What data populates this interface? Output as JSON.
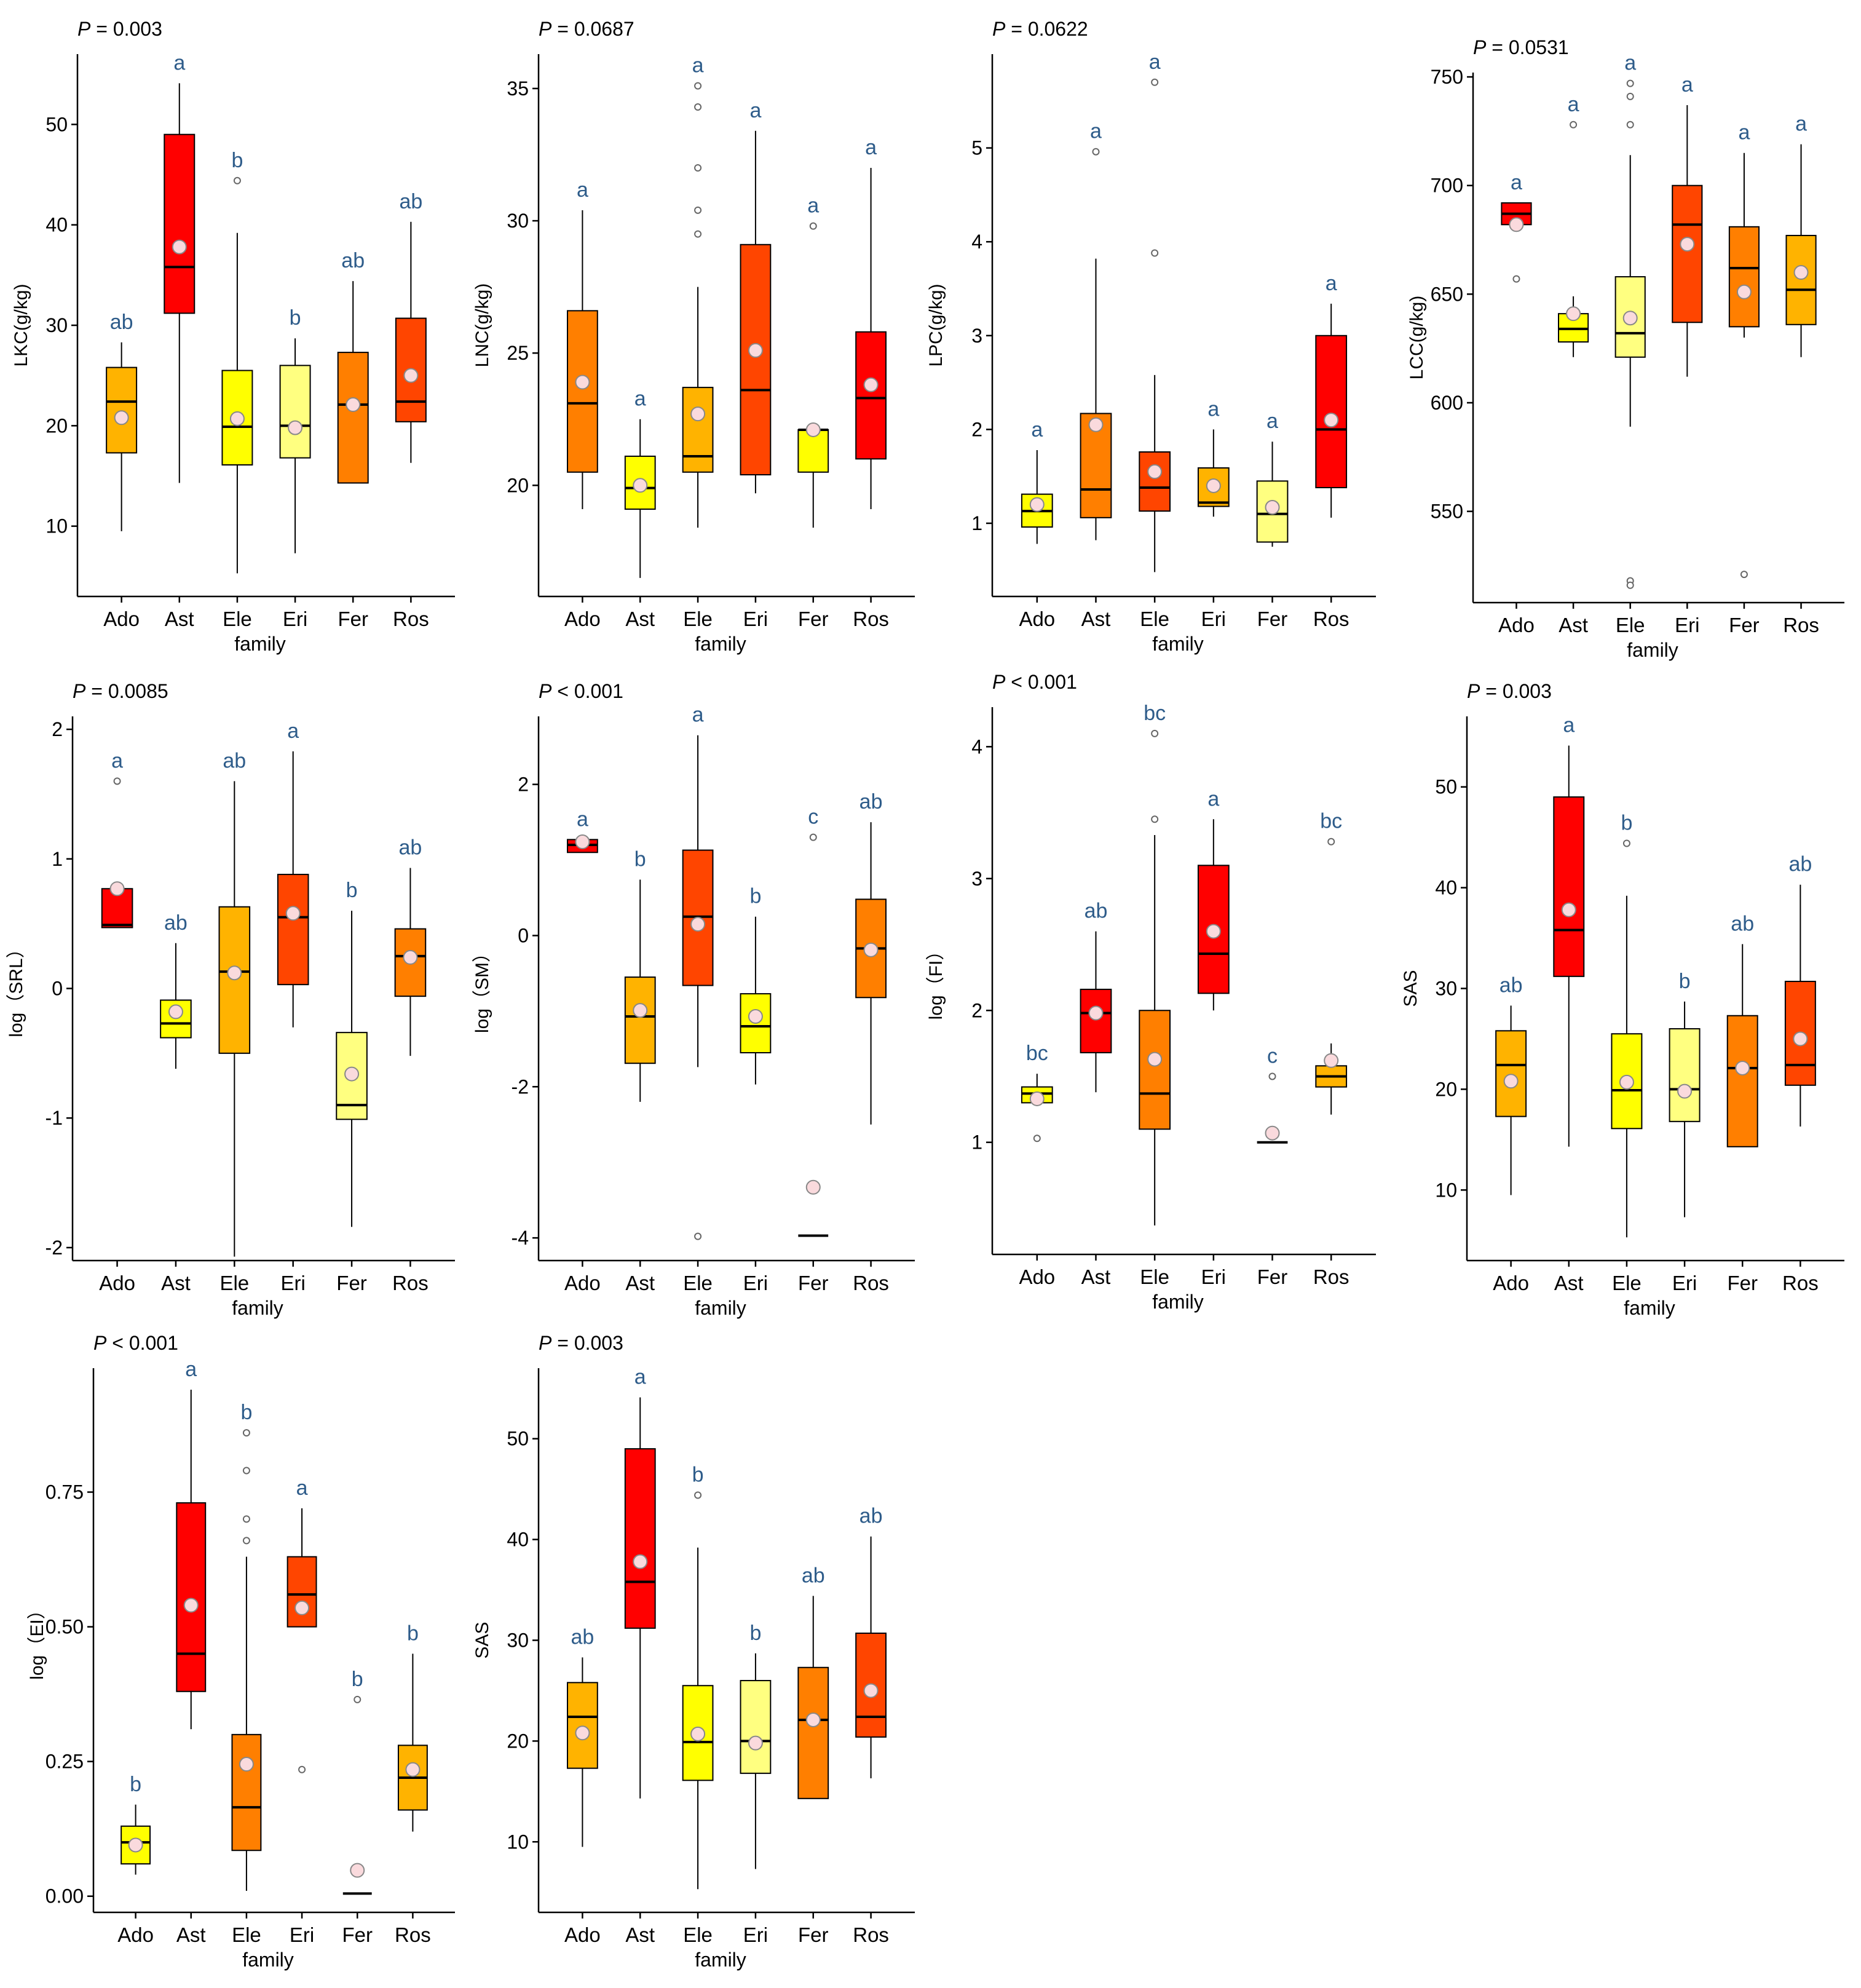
{
  "colors": {
    "red": "#FF0000",
    "redorange": "#FF4500",
    "orange": "#FF7F00",
    "amber": "#FFB300",
    "yellow": "#FFFF00",
    "paleyellow": "#FFFF80",
    "letter": "#2E5C8A",
    "mean_fill": "#FADADD"
  },
  "chart_data": [
    {
      "type": "box",
      "pvalue": "P = 0.003",
      "ylabel": "LKC(g/kg)",
      "xlabel": "family",
      "ylim": [
        3,
        57
      ],
      "yticks": [
        10,
        20,
        30,
        40,
        50
      ],
      "categories": [
        "Ado",
        "Ast",
        "Ele",
        "Eri",
        "Fer",
        "Ros"
      ],
      "boxes": [
        {
          "q1": 17.3,
          "median": 22.4,
          "q3": 25.8,
          "lo": 9.5,
          "hi": 28.3,
          "mean": 20.8,
          "outliers": [],
          "letter": "ab",
          "color": "amber"
        },
        {
          "q1": 31.2,
          "median": 35.8,
          "q3": 49.0,
          "lo": 14.3,
          "hi": 54.1,
          "mean": 37.8,
          "outliers": [],
          "letter": "a",
          "color": "red"
        },
        {
          "q1": 16.1,
          "median": 19.9,
          "q3": 25.5,
          "lo": 5.3,
          "hi": 39.2,
          "mean": 20.7,
          "outliers": [
            44.4
          ],
          "letter": "b",
          "color": "yellow"
        },
        {
          "q1": 16.8,
          "median": 20.0,
          "q3": 26.0,
          "lo": 7.3,
          "hi": 28.7,
          "mean": 19.8,
          "outliers": [],
          "letter": "b",
          "color": "paleyellow"
        },
        {
          "q1": 14.3,
          "median": 22.1,
          "q3": 27.3,
          "lo": 14.3,
          "hi": 34.4,
          "mean": 22.1,
          "outliers": [],
          "letter": "ab",
          "color": "orange"
        },
        {
          "q1": 20.4,
          "median": 22.4,
          "q3": 30.7,
          "lo": 16.3,
          "hi": 40.3,
          "mean": 25.0,
          "outliers": [],
          "letter": "ab",
          "color": "redorange"
        }
      ]
    },
    {
      "type": "box",
      "pvalue": "P = 0.0687",
      "ylabel": "LNC(g/kg)",
      "xlabel": "family",
      "ylim": [
        15.8,
        36.3
      ],
      "yticks": [
        20,
        25,
        30,
        35
      ],
      "categories": [
        "Ado",
        "Ast",
        "Ele",
        "Eri",
        "Fer",
        "Ros"
      ],
      "boxes": [
        {
          "q1": 20.5,
          "median": 23.1,
          "q3": 26.6,
          "lo": 19.1,
          "hi": 30.4,
          "mean": 23.9,
          "outliers": [],
          "letter": "a",
          "color": "orange"
        },
        {
          "q1": 19.1,
          "median": 19.9,
          "q3": 21.1,
          "lo": 16.5,
          "hi": 22.5,
          "mean": 20.0,
          "outliers": [],
          "letter": "a",
          "color": "yellow"
        },
        {
          "q1": 20.5,
          "median": 21.1,
          "q3": 23.7,
          "lo": 18.4,
          "hi": 27.5,
          "mean": 22.7,
          "outliers": [
            29.5,
            30.4,
            32.0,
            34.3,
            35.1
          ],
          "letter": "a",
          "color": "amber"
        },
        {
          "q1": 20.4,
          "median": 23.6,
          "q3": 29.1,
          "lo": 19.7,
          "hi": 33.4,
          "mean": 25.1,
          "outliers": [],
          "letter": "a",
          "color": "redorange"
        },
        {
          "q1": 20.5,
          "median": 22.1,
          "q3": 22.1,
          "lo": 18.4,
          "hi": 22.1,
          "mean": 22.1,
          "outliers": [
            29.8
          ],
          "letter": "a",
          "color": "yellow"
        },
        {
          "q1": 21.0,
          "median": 23.3,
          "q3": 25.8,
          "lo": 19.1,
          "hi": 32.0,
          "mean": 23.8,
          "outliers": [],
          "letter": "a",
          "color": "red"
        }
      ]
    },
    {
      "type": "box",
      "pvalue": "P = 0.0622",
      "ylabel": "LPC(g/kg)",
      "xlabel": "family",
      "ylim": [
        0.22,
        6.0
      ],
      "yticks": [
        1,
        2,
        3,
        4,
        5
      ],
      "categories": [
        "Ado",
        "Ast",
        "Ele",
        "Eri",
        "Fer",
        "Ros"
      ],
      "boxes": [
        {
          "q1": 0.96,
          "median": 1.13,
          "q3": 1.31,
          "lo": 0.78,
          "hi": 1.78,
          "mean": 1.2,
          "outliers": [],
          "letter": "a",
          "color": "yellow"
        },
        {
          "q1": 1.06,
          "median": 1.36,
          "q3": 2.17,
          "lo": 0.82,
          "hi": 3.82,
          "mean": 2.05,
          "outliers": [
            4.96
          ],
          "letter": "a",
          "color": "orange"
        },
        {
          "q1": 1.13,
          "median": 1.38,
          "q3": 1.76,
          "lo": 0.48,
          "hi": 2.58,
          "mean": 1.55,
          "outliers": [
            3.88,
            5.7
          ],
          "letter": "a",
          "color": "redorange"
        },
        {
          "q1": 1.18,
          "median": 1.22,
          "q3": 1.59,
          "lo": 1.07,
          "hi": 2.0,
          "mean": 1.4,
          "outliers": [],
          "letter": "a",
          "color": "amber"
        },
        {
          "q1": 0.8,
          "median": 1.1,
          "q3": 1.45,
          "lo": 0.75,
          "hi": 1.87,
          "mean": 1.17,
          "outliers": [],
          "letter": "a",
          "color": "paleyellow"
        },
        {
          "q1": 1.38,
          "median": 2.0,
          "q3": 3.0,
          "lo": 1.06,
          "hi": 3.34,
          "mean": 2.1,
          "outliers": [],
          "letter": "a",
          "color": "red"
        }
      ]
    },
    {
      "type": "box",
      "pvalue": "P = 0.0531",
      "ylabel": "LCC(g/kg)",
      "xlabel": "family",
      "ylim": [
        508,
        752
      ],
      "yticks": [
        550,
        600,
        650,
        700,
        750
      ],
      "categories": [
        "Ado",
        "Ast",
        "Ele",
        "Eri",
        "Fer",
        "Ros"
      ],
      "boxes": [
        {
          "q1": 682,
          "median": 687,
          "q3": 692,
          "lo": 682,
          "hi": 692,
          "mean": 682,
          "outliers": [
            657
          ],
          "letter": "a",
          "color": "red"
        },
        {
          "q1": 628,
          "median": 634,
          "q3": 641,
          "lo": 621,
          "hi": 649,
          "mean": 641,
          "outliers": [
            728
          ],
          "letter": "a",
          "color": "yellow"
        },
        {
          "q1": 621,
          "median": 632,
          "q3": 658,
          "lo": 589,
          "hi": 714,
          "mean": 639,
          "outliers": [
            518,
            516,
            728,
            741,
            747
          ],
          "letter": "a",
          "color": "paleyellow"
        },
        {
          "q1": 637,
          "median": 682,
          "q3": 700,
          "lo": 612,
          "hi": 737,
          "mean": 673,
          "outliers": [],
          "letter": "a",
          "color": "redorange"
        },
        {
          "q1": 635,
          "median": 662,
          "q3": 681,
          "lo": 630,
          "hi": 715,
          "mean": 651,
          "outliers": [
            521
          ],
          "letter": "a",
          "color": "orange"
        },
        {
          "q1": 636,
          "median": 652,
          "q3": 677,
          "lo": 621,
          "hi": 719,
          "mean": 660,
          "outliers": [],
          "letter": "a",
          "color": "amber"
        }
      ]
    },
    {
      "type": "box",
      "pvalue": "P = 0.0085",
      "ylabel": "log（SRL）",
      "xlabel": "family",
      "ylim": [
        -2.1,
        2.1
      ],
      "yticks": [
        -2,
        -1,
        0,
        1,
        2
      ],
      "categories": [
        "Ado",
        "Ast",
        "Ele",
        "Eri",
        "Fer",
        "Ros"
      ],
      "boxes": [
        {
          "q1": 0.47,
          "median": 0.49,
          "q3": 0.77,
          "lo": 0.47,
          "hi": 0.77,
          "mean": 0.77,
          "outliers": [
            1.6
          ],
          "letter": "a",
          "color": "red"
        },
        {
          "q1": -0.38,
          "median": -0.27,
          "q3": -0.09,
          "lo": -0.62,
          "hi": 0.35,
          "mean": -0.18,
          "outliers": [],
          "letter": "ab",
          "color": "yellow"
        },
        {
          "q1": -0.5,
          "median": 0.13,
          "q3": 0.63,
          "lo": -2.07,
          "hi": 1.6,
          "mean": 0.12,
          "outliers": [],
          "letter": "ab",
          "color": "amber"
        },
        {
          "q1": 0.03,
          "median": 0.55,
          "q3": 0.88,
          "lo": -0.3,
          "hi": 1.83,
          "mean": 0.58,
          "outliers": [],
          "letter": "a",
          "color": "redorange"
        },
        {
          "q1": -1.01,
          "median": -0.9,
          "q3": -0.34,
          "lo": -1.84,
          "hi": 0.6,
          "mean": -0.66,
          "outliers": [],
          "letter": "b",
          "color": "paleyellow"
        },
        {
          "q1": -0.06,
          "median": 0.25,
          "q3": 0.46,
          "lo": -0.52,
          "hi": 0.93,
          "mean": 0.24,
          "outliers": [],
          "letter": "ab",
          "color": "orange"
        }
      ]
    },
    {
      "type": "box",
      "pvalue": "P < 0.001",
      "ylabel": "log（SM）",
      "xlabel": "family",
      "ylim": [
        -4.3,
        2.9
      ],
      "yticks": [
        -4,
        -2,
        0,
        2
      ],
      "categories": [
        "Ado",
        "Ast",
        "Ele",
        "Eri",
        "Fer",
        "Ros"
      ],
      "boxes": [
        {
          "q1": 1.1,
          "median": 1.2,
          "q3": 1.27,
          "lo": 1.1,
          "hi": 1.27,
          "mean": 1.24,
          "outliers": [],
          "letter": "a",
          "color": "red"
        },
        {
          "q1": -1.69,
          "median": -1.07,
          "q3": -0.55,
          "lo": -2.2,
          "hi": 0.74,
          "mean": -0.99,
          "outliers": [],
          "letter": "b",
          "color": "amber"
        },
        {
          "q1": -0.66,
          "median": 0.25,
          "q3": 1.13,
          "lo": -1.74,
          "hi": 2.65,
          "mean": 0.15,
          "outliers": [
            -3.98
          ],
          "letter": "a",
          "color": "redorange"
        },
        {
          "q1": -1.55,
          "median": -1.2,
          "q3": -0.77,
          "lo": -1.97,
          "hi": 0.25,
          "mean": -1.07,
          "outliers": [],
          "letter": "b",
          "color": "yellow"
        },
        {
          "q1": -3.97,
          "median": -3.97,
          "q3": -3.97,
          "lo": -3.97,
          "hi": -3.97,
          "mean": -3.33,
          "outliers": [
            1.3
          ],
          "letter": "c",
          "color": "paleyellow"
        },
        {
          "q1": -0.82,
          "median": -0.17,
          "q3": 0.48,
          "lo": -2.5,
          "hi": 1.5,
          "mean": -0.19,
          "outliers": [],
          "letter": "ab",
          "color": "orange"
        }
      ]
    },
    {
      "type": "box",
      "pvalue": "P < 0.001",
      "ylabel": "log（FI）",
      "xlabel": "family",
      "ylim": [
        0.15,
        4.3
      ],
      "yticks": [
        1,
        2,
        3,
        4
      ],
      "categories": [
        "Ado",
        "Ast",
        "Ele",
        "Eri",
        "Fer",
        "Ros"
      ],
      "boxes": [
        {
          "q1": 1.3,
          "median": 1.37,
          "q3": 1.42,
          "lo": 1.3,
          "hi": 1.52,
          "mean": 1.33,
          "outliers": [
            1.03
          ],
          "letter": "bc",
          "color": "yellow"
        },
        {
          "q1": 1.68,
          "median": 1.98,
          "q3": 2.16,
          "lo": 1.38,
          "hi": 2.6,
          "mean": 1.98,
          "outliers": [],
          "letter": "ab",
          "color": "red"
        },
        {
          "q1": 1.1,
          "median": 1.37,
          "q3": 2.0,
          "lo": 0.37,
          "hi": 3.33,
          "mean": 1.63,
          "outliers": [
            3.45,
            4.1
          ],
          "letter": "bc",
          "color": "orange"
        },
        {
          "q1": 2.13,
          "median": 2.43,
          "q3": 3.1,
          "lo": 2.0,
          "hi": 3.45,
          "mean": 2.6,
          "outliers": [],
          "letter": "a",
          "color": "red"
        },
        {
          "q1": 1.0,
          "median": 1.0,
          "q3": 1.0,
          "lo": 1.0,
          "hi": 1.0,
          "mean": 1.07,
          "outliers": [
            1.5
          ],
          "letter": "c",
          "color": "paleyellow"
        },
        {
          "q1": 1.42,
          "median": 1.5,
          "q3": 1.58,
          "lo": 1.21,
          "hi": 1.75,
          "mean": 1.62,
          "outliers": [
            3.28
          ],
          "letter": "bc",
          "color": "amber"
        }
      ]
    },
    {
      "type": "box",
      "pvalue": "P = 0.003",
      "ylabel": "SAS",
      "xlabel": "family",
      "ylim": [
        3,
        57
      ],
      "yticks": [
        10,
        20,
        30,
        40,
        50
      ],
      "categories": [
        "Ado",
        "Ast",
        "Ele",
        "Eri",
        "Fer",
        "Ros"
      ],
      "boxes": [
        {
          "q1": 17.3,
          "median": 22.4,
          "q3": 25.8,
          "lo": 9.5,
          "hi": 28.3,
          "mean": 20.8,
          "outliers": [],
          "letter": "ab",
          "color": "amber"
        },
        {
          "q1": 31.2,
          "median": 35.8,
          "q3": 49.0,
          "lo": 14.3,
          "hi": 54.1,
          "mean": 37.8,
          "outliers": [],
          "letter": "a",
          "color": "red"
        },
        {
          "q1": 16.1,
          "median": 19.9,
          "q3": 25.5,
          "lo": 5.3,
          "hi": 39.2,
          "mean": 20.7,
          "outliers": [
            44.4
          ],
          "letter": "b",
          "color": "yellow"
        },
        {
          "q1": 16.8,
          "median": 20.0,
          "q3": 26.0,
          "lo": 7.3,
          "hi": 28.7,
          "mean": 19.8,
          "outliers": [],
          "letter": "b",
          "color": "paleyellow"
        },
        {
          "q1": 14.3,
          "median": 22.1,
          "q3": 27.3,
          "lo": 14.3,
          "hi": 34.4,
          "mean": 22.1,
          "outliers": [],
          "letter": "ab",
          "color": "orange"
        },
        {
          "q1": 20.4,
          "median": 22.4,
          "q3": 30.7,
          "lo": 16.3,
          "hi": 40.3,
          "mean": 25.0,
          "outliers": [],
          "letter": "ab",
          "color": "redorange"
        }
      ]
    },
    {
      "type": "box",
      "pvalue": "P < 0.001",
      "ylabel": "log（EI）",
      "xlabel": "family",
      "ylim": [
        -0.03,
        0.98
      ],
      "yticks": [
        "0.00",
        "0.25",
        "0.50",
        "0.75"
      ],
      "categories": [
        "Ado",
        "Ast",
        "Ele",
        "Eri",
        "Fer",
        "Ros"
      ],
      "boxes": [
        {
          "q1": 0.06,
          "median": 0.1,
          "q3": 0.13,
          "lo": 0.04,
          "hi": 0.17,
          "mean": 0.095,
          "outliers": [],
          "letter": "b",
          "color": "yellow"
        },
        {
          "q1": 0.38,
          "median": 0.45,
          "q3": 0.73,
          "lo": 0.31,
          "hi": 0.94,
          "mean": 0.54,
          "outliers": [],
          "letter": "a",
          "color": "red"
        },
        {
          "q1": 0.085,
          "median": 0.165,
          "q3": 0.3,
          "lo": 0.01,
          "hi": 0.63,
          "mean": 0.245,
          "outliers": [
            0.66,
            0.7,
            0.79,
            0.86
          ],
          "letter": "b",
          "color": "orange"
        },
        {
          "q1": 0.5,
          "median": 0.56,
          "q3": 0.63,
          "lo": 0.5,
          "hi": 0.72,
          "mean": 0.535,
          "outliers": [
            0.235
          ],
          "letter": "a",
          "color": "redorange"
        },
        {
          "q1": 0.005,
          "median": 0.005,
          "q3": 0.005,
          "lo": 0.005,
          "hi": 0.005,
          "mean": 0.048,
          "outliers": [
            0.365
          ],
          "letter": "b",
          "color": "paleyellow"
        },
        {
          "q1": 0.16,
          "median": 0.22,
          "q3": 0.28,
          "lo": 0.12,
          "hi": 0.45,
          "mean": 0.235,
          "outliers": [],
          "letter": "b",
          "color": "amber"
        }
      ]
    },
    {
      "type": "box",
      "pvalue": "P = 0.003",
      "ylabel": "SAS",
      "xlabel": "family",
      "ylim": [
        3,
        57
      ],
      "yticks": [
        10,
        20,
        30,
        40,
        50
      ],
      "categories": [
        "Ado",
        "Ast",
        "Ele",
        "Eri",
        "Fer",
        "Ros"
      ],
      "boxes": [
        {
          "q1": 17.3,
          "median": 22.4,
          "q3": 25.8,
          "lo": 9.5,
          "hi": 28.3,
          "mean": 20.8,
          "outliers": [],
          "letter": "ab",
          "color": "amber"
        },
        {
          "q1": 31.2,
          "median": 35.8,
          "q3": 49.0,
          "lo": 14.3,
          "hi": 54.1,
          "mean": 37.8,
          "outliers": [],
          "letter": "a",
          "color": "red"
        },
        {
          "q1": 16.1,
          "median": 19.9,
          "q3": 25.5,
          "lo": 5.3,
          "hi": 39.2,
          "mean": 20.7,
          "outliers": [
            44.4
          ],
          "letter": "b",
          "color": "yellow"
        },
        {
          "q1": 16.8,
          "median": 20.0,
          "q3": 26.0,
          "lo": 7.3,
          "hi": 28.7,
          "mean": 19.8,
          "outliers": [],
          "letter": "b",
          "color": "paleyellow"
        },
        {
          "q1": 14.3,
          "median": 22.1,
          "q3": 27.3,
          "lo": 14.3,
          "hi": 34.4,
          "mean": 22.1,
          "outliers": [],
          "letter": "ab",
          "color": "orange"
        },
        {
          "q1": 20.4,
          "median": 22.4,
          "q3": 30.7,
          "lo": 16.3,
          "hi": 40.3,
          "mean": 25.0,
          "outliers": [],
          "letter": "ab",
          "color": "redorange"
        }
      ]
    }
  ]
}
